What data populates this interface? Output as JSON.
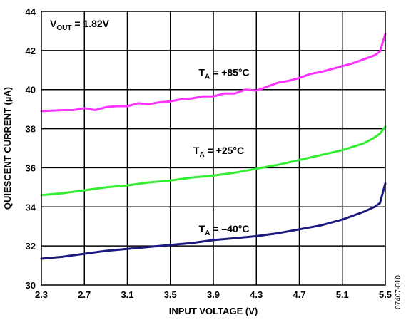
{
  "chart_data": {
    "type": "line",
    "title": "",
    "xlabel": "INPUT VOLTAGE (V)",
    "ylabel": "QUIESCENT CURRENT (µA)",
    "xlim": [
      2.3,
      5.5
    ],
    "ylim": [
      30,
      44
    ],
    "x_ticks": [
      "2.3",
      "2.7",
      "3.1",
      "3.5",
      "3.9",
      "4.3",
      "4.7",
      "5.1",
      "5.5"
    ],
    "y_ticks": [
      "30",
      "32",
      "34",
      "36",
      "38",
      "40",
      "42",
      "44"
    ],
    "grid": true,
    "annotation": {
      "main": "V",
      "sub": "OUT",
      "rest": " = 1.82V"
    },
    "figure_id": "07407-010",
    "series": [
      {
        "name": "TA = +85°C",
        "label_main": "T",
        "label_sub": "A",
        "label_rest": " = +85°C",
        "label_at": [
          4.0,
          40.7
        ],
        "color": "#ff33ff",
        "x": [
          2.3,
          2.5,
          2.6,
          2.7,
          2.8,
          2.9,
          3.0,
          3.1,
          3.2,
          3.3,
          3.4,
          3.5,
          3.6,
          3.7,
          3.8,
          3.9,
          4.0,
          4.1,
          4.2,
          4.3,
          4.4,
          4.5,
          4.6,
          4.7,
          4.8,
          4.9,
          5.0,
          5.1,
          5.2,
          5.3,
          5.4,
          5.45,
          5.5
        ],
        "y": [
          38.9,
          38.95,
          38.95,
          39.05,
          38.95,
          39.1,
          39.15,
          39.15,
          39.3,
          39.25,
          39.35,
          39.4,
          39.5,
          39.55,
          39.65,
          39.65,
          39.8,
          39.8,
          40.0,
          39.95,
          40.15,
          40.35,
          40.45,
          40.6,
          40.8,
          40.9,
          41.05,
          41.2,
          41.35,
          41.55,
          41.75,
          41.95,
          42.85
        ]
      },
      {
        "name": "TA = +25°C",
        "label_main": "T",
        "label_sub": "A",
        "label_rest": " = +25°C",
        "label_at": [
          3.95,
          36.7
        ],
        "color": "#33ee33",
        "x": [
          2.3,
          2.5,
          2.7,
          2.9,
          3.1,
          3.3,
          3.5,
          3.7,
          3.9,
          4.1,
          4.3,
          4.5,
          4.7,
          4.9,
          5.1,
          5.3,
          5.4,
          5.45,
          5.5
        ],
        "y": [
          34.6,
          34.7,
          34.85,
          35.0,
          35.1,
          35.25,
          35.35,
          35.5,
          35.6,
          35.75,
          35.95,
          36.15,
          36.4,
          36.65,
          36.9,
          37.25,
          37.55,
          37.75,
          38.1
        ]
      },
      {
        "name": "TA = –40°C",
        "label_main": "T",
        "label_sub": "A",
        "label_rest": " = –40°C",
        "label_at": [
          4.0,
          32.7
        ],
        "color": "#1a1a80",
        "x": [
          2.3,
          2.5,
          2.7,
          2.9,
          3.1,
          3.3,
          3.5,
          3.7,
          3.9,
          4.1,
          4.3,
          4.5,
          4.7,
          4.9,
          5.1,
          5.3,
          5.4,
          5.45,
          5.5
        ],
        "y": [
          31.35,
          31.45,
          31.6,
          31.75,
          31.85,
          31.95,
          32.05,
          32.15,
          32.3,
          32.4,
          32.5,
          32.65,
          32.85,
          33.05,
          33.35,
          33.75,
          34.0,
          34.2,
          35.2
        ]
      }
    ]
  }
}
